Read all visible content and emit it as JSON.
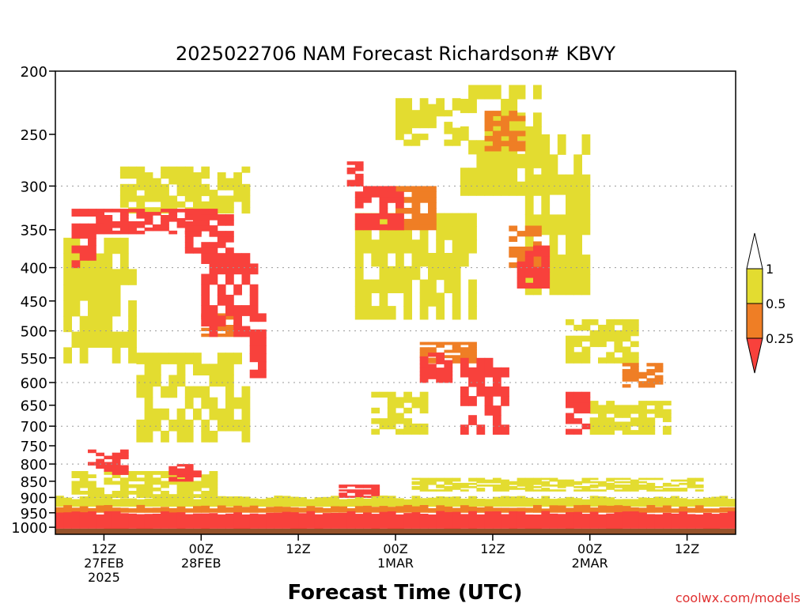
{
  "chart_data": {
    "type": "heatmap",
    "title": "2025022706 NAM Forecast Richardson# KBVY",
    "xlabel": "Forecast Time (UTC)",
    "ylabel": "",
    "credit": "coolwx.com/models",
    "y_axis": {
      "scale": "log-pressure",
      "unit": "hPa",
      "range": [
        200,
        1025
      ],
      "ticks": [
        200,
        250,
        300,
        350,
        400,
        450,
        500,
        550,
        600,
        650,
        700,
        750,
        800,
        850,
        900,
        950,
        1000
      ],
      "dotted_gridlines": [
        300,
        400,
        500,
        600,
        700,
        800,
        900
      ]
    },
    "x_axis": {
      "range": [
        "2025-02-27 06Z",
        "2025-03-02 18Z"
      ],
      "ticks": [
        {
          "hour": 6,
          "labels": [
            "12Z",
            "27FEB",
            "2025"
          ]
        },
        {
          "hour": 18,
          "labels": [
            "00Z",
            "28FEB"
          ]
        },
        {
          "hour": 30,
          "labels": [
            "12Z"
          ]
        },
        {
          "hour": 42,
          "labels": [
            "00Z",
            "1MAR"
          ]
        },
        {
          "hour": 54,
          "labels": [
            "12Z"
          ]
        },
        {
          "hour": 66,
          "labels": [
            "00Z",
            "2MAR"
          ]
        },
        {
          "hour": 78,
          "labels": [
            "12Z"
          ]
        }
      ],
      "hour_range": [
        0,
        84
      ]
    },
    "legend": {
      "placement": "right",
      "thresholds": [
        "1",
        "0.5",
        "0.25"
      ],
      "bins": [
        {
          "label": "> 1",
          "color": "#ffffff"
        },
        {
          "label": "0.5 - 1",
          "color": "#e3dc30"
        },
        {
          "label": "0.25 - 0.5",
          "color": "#ef7e25"
        },
        {
          "label": "< 0.25",
          "color": "#f8413c"
        }
      ]
    },
    "colors": {
      "low_ri": "#f8413c",
      "mid_ri": "#ef7e25",
      "high_ri": "#e3dc30",
      "ground": "#96522a"
    },
    "regions": [
      {
        "bin": "< 0.25",
        "hours": [
          2,
          6
        ],
        "pressure": [
          325,
          400
        ]
      },
      {
        "bin": "< 0.25",
        "hours": [
          5,
          18
        ],
        "pressure": [
          325,
          355
        ]
      },
      {
        "bin": "< 0.25",
        "hours": [
          16,
          22
        ],
        "pressure": [
          325,
          380
        ]
      },
      {
        "bin": "< 0.25",
        "hours": [
          18,
          25
        ],
        "pressure": [
          380,
          510
        ]
      },
      {
        "bin": "< 0.25",
        "hours": [
          24,
          26
        ],
        "pressure": [
          470,
          590
        ]
      },
      {
        "bin": "< 0.25",
        "hours": [
          36,
          38
        ],
        "pressure": [
          275,
          300
        ]
      },
      {
        "bin": "< 0.25",
        "hours": [
          37,
          43
        ],
        "pressure": [
          300,
          350
        ]
      },
      {
        "bin": "< 0.25",
        "hours": [
          45,
          49
        ],
        "pressure": [
          540,
          600
        ]
      },
      {
        "bin": "< 0.25",
        "hours": [
          50,
          56
        ],
        "pressure": [
          550,
          720
        ]
      },
      {
        "bin": "< 0.25",
        "hours": [
          57,
          61
        ],
        "pressure": [
          370,
          430
        ]
      },
      {
        "bin": "< 0.25",
        "hours": [
          63,
          66
        ],
        "pressure": [
          620,
          720
        ]
      },
      {
        "bin": "< 0.25",
        "hours": [
          4,
          9
        ],
        "pressure": [
          760,
          830
        ]
      },
      {
        "bin": "< 0.25",
        "hours": [
          14,
          18
        ],
        "pressure": [
          800,
          850
        ]
      },
      {
        "bin": "< 0.25",
        "hours": [
          35,
          40
        ],
        "pressure": [
          860,
          900
        ]
      },
      {
        "bin": "0.25 - 0.5",
        "hours": [
          56,
          60
        ],
        "pressure": [
          345,
          400
        ]
      },
      {
        "bin": "0.25 - 0.5",
        "hours": [
          53,
          58
        ],
        "pressure": [
          230,
          265
        ]
      },
      {
        "bin": "0.25 - 0.5",
        "hours": [
          41,
          47
        ],
        "pressure": [
          300,
          350
        ]
      },
      {
        "bin": "0.25 - 0.5",
        "hours": [
          45,
          52
        ],
        "pressure": [
          520,
          560
        ]
      },
      {
        "bin": "0.25 - 0.5",
        "hours": [
          70,
          75
        ],
        "pressure": [
          560,
          610
        ]
      },
      {
        "bin": "0.25 - 0.5",
        "hours": [
          18,
          24
        ],
        "pressure": [
          470,
          510
        ]
      },
      {
        "bin": "0.5 - 1",
        "hours": [
          1,
          10
        ],
        "pressure": [
          360,
          560
        ]
      },
      {
        "bin": "0.5 - 1",
        "hours": [
          8,
          24
        ],
        "pressure": [
          280,
          330
        ]
      },
      {
        "bin": "0.5 - 1",
        "hours": [
          37,
          52
        ],
        "pressure": [
          330,
          480
        ]
      },
      {
        "bin": "0.5 - 1",
        "hours": [
          42,
          50
        ],
        "pressure": [
          220,
          260
        ]
      },
      {
        "bin": "0.5 - 1",
        "hours": [
          50,
          60
        ],
        "pressure": [
          210,
          310
        ]
      },
      {
        "bin": "0.5 - 1",
        "hours": [
          58,
          66
        ],
        "pressure": [
          250,
          440
        ]
      },
      {
        "bin": "0.5 - 1",
        "hours": [
          63,
          72
        ],
        "pressure": [
          480,
          560
        ]
      },
      {
        "bin": "0.5 - 1",
        "hours": [
          66,
          76
        ],
        "pressure": [
          640,
          720
        ]
      },
      {
        "bin": "0.5 - 1",
        "hours": [
          10,
          24
        ],
        "pressure": [
          540,
          740
        ]
      },
      {
        "bin": "0.5 - 1",
        "hours": [
          39,
          46
        ],
        "pressure": [
          620,
          720
        ]
      },
      {
        "bin": "0.5 - 1",
        "hours": [
          2,
          20
        ],
        "pressure": [
          820,
          900
        ]
      },
      {
        "bin": "0.5 - 1",
        "hours": [
          44,
          80
        ],
        "pressure": [
          840,
          880
        ]
      }
    ],
    "boundary_layer": [
      {
        "bin": "0.5 - 1",
        "pressure": [
          900,
          930
        ]
      },
      {
        "bin": "0.25 - 0.5",
        "pressure": [
          930,
          950
        ]
      },
      {
        "bin": "< 0.25",
        "pressure": [
          950,
          1005
        ]
      }
    ]
  }
}
